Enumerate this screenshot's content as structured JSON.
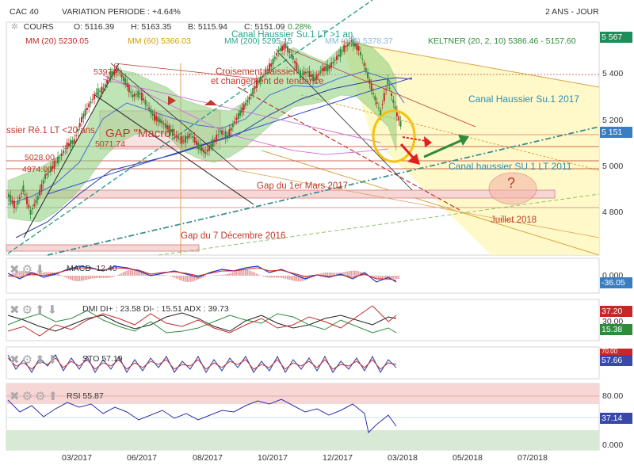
{
  "header": {
    "instrument": "CAC 40",
    "variation": "VARIATION PERIODE : +4.64%",
    "period": "2 ANS - JOUR",
    "cours_label": "COURS",
    "open": "O: 5116.39",
    "high": "H: 5163.35",
    "low": "B: 5115.94",
    "close": "C: 5151.09",
    "change": "0.28%",
    "mm20": "MM (20)  5230.05",
    "mm60": "MM (60)  5366.03",
    "mm200": "MM (200)  5295.15",
    "mm100": "MM (100)  5378.37",
    "keltner": "KELTNER (20, 2, 10)  5386.46 - 5157.60"
  },
  "price_boxes": {
    "top": "5 567",
    "last": "5 151"
  },
  "colors": {
    "candle_up": "#2e8b3a",
    "candle_down": "#c62828",
    "keltner_fill": "#8ccf7a",
    "channel_fill": "#fff8c0",
    "price_box_top": "#1e8f5a",
    "price_box_last": "#3a7ec2",
    "macd_box": "#3a7ec2",
    "dmi_red": "#c62828",
    "dmi_green": "#2e8b3a",
    "sto_blue": "#3949ab",
    "rsi_box": "#3949ab"
  },
  "annotations": {
    "canal_lt1an": "Canal Haussier Su.1 LT >1 an",
    "croisement": "Croisement haissier",
    "changement": "et changement de tendance",
    "canal_2017": "Canal Haussier Su.1 2017",
    "canal_lt2011": "Canal haussier SU 1 LT 2011",
    "gap_mars": "Gap du 1er Mars 2017",
    "gap_dec": "Gap du 7 Décembre 2016",
    "gap_macro": "GAP \"Macro\"",
    "haussier_re": "ssier Ré.1 LT <20 ans",
    "juillet": "Juillet 2018",
    "question": "?",
    "lvl_5397": "5397",
    "lvl_5028": "5028.00",
    "lvl_4974": "4974.00",
    "lvl_5071": "5071.74"
  },
  "indicators": {
    "macd": {
      "label": "MACD  -12.40",
      "tick": "0.000",
      "value": "-36.05"
    },
    "dmi": {
      "label": "DMI DI+ : 23.58 DI- : 15.51 ADX : 39.73",
      "value_red": "37.20",
      "value_mid": "30.00",
      "value_green": "15.38"
    },
    "sto": {
      "label": "STO  57.19",
      "tick_top": "70.00",
      "value": "57.66"
    },
    "rsi": {
      "label": "RSI  55.87",
      "tick_top": "80.00",
      "value": "37.14",
      "tick_bottom": "0.000"
    }
  },
  "chart_data": {
    "type": "line",
    "title": "CAC 40",
    "x": [
      "03/2017",
      "06/2017",
      "08/2017",
      "10/2017",
      "12/2017",
      "03/2018",
      "05/2018",
      "07/2018"
    ],
    "xlabel": "",
    "ylabel": "",
    "y_ticks": [
      "5 400",
      "5 200",
      "5 000",
      "4 800"
    ],
    "ylim": [
      4620,
      5600
    ],
    "series": [
      {
        "name": "COURS",
        "points": [
          [
            0,
            4870
          ],
          [
            4,
            4820
          ],
          [
            8,
            4900
          ],
          [
            12,
            4800
          ],
          [
            16,
            4860
          ],
          [
            20,
            4950
          ],
          [
            24,
            4990
          ],
          [
            28,
            5030
          ],
          [
            32,
            5080
          ],
          [
            36,
            5100
          ],
          [
            40,
            5190
          ],
          [
            44,
            5250
          ],
          [
            48,
            5300
          ],
          [
            52,
            5320
          ],
          [
            56,
            5380
          ],
          [
            60,
            5400
          ],
          [
            64,
            5350
          ],
          [
            68,
            5290
          ],
          [
            72,
            5300
          ],
          [
            76,
            5250
          ],
          [
            80,
            5200
          ],
          [
            84,
            5180
          ],
          [
            88,
            5150
          ],
          [
            92,
            5120
          ],
          [
            96,
            5100
          ],
          [
            100,
            5130
          ],
          [
            104,
            5080
          ],
          [
            108,
            5050
          ],
          [
            112,
            5090
          ],
          [
            116,
            5140
          ],
          [
            120,
            5120
          ],
          [
            124,
            5180
          ],
          [
            128,
            5230
          ],
          [
            132,
            5280
          ],
          [
            136,
            5340
          ],
          [
            140,
            5380
          ],
          [
            144,
            5420
          ],
          [
            148,
            5480
          ],
          [
            152,
            5500
          ],
          [
            156,
            5450
          ],
          [
            160,
            5380
          ],
          [
            164,
            5390
          ],
          [
            168,
            5360
          ],
          [
            172,
            5400
          ],
          [
            176,
            5410
          ],
          [
            180,
            5450
          ],
          [
            184,
            5490
          ],
          [
            188,
            5520
          ],
          [
            192,
            5490
          ],
          [
            196,
            5400
          ],
          [
            200,
            5300
          ],
          [
            204,
            5220
          ],
          [
            208,
            5350
          ],
          [
            212,
            5240
          ],
          [
            216,
            5150
          ]
        ]
      }
    ],
    "legend": "top-left"
  }
}
